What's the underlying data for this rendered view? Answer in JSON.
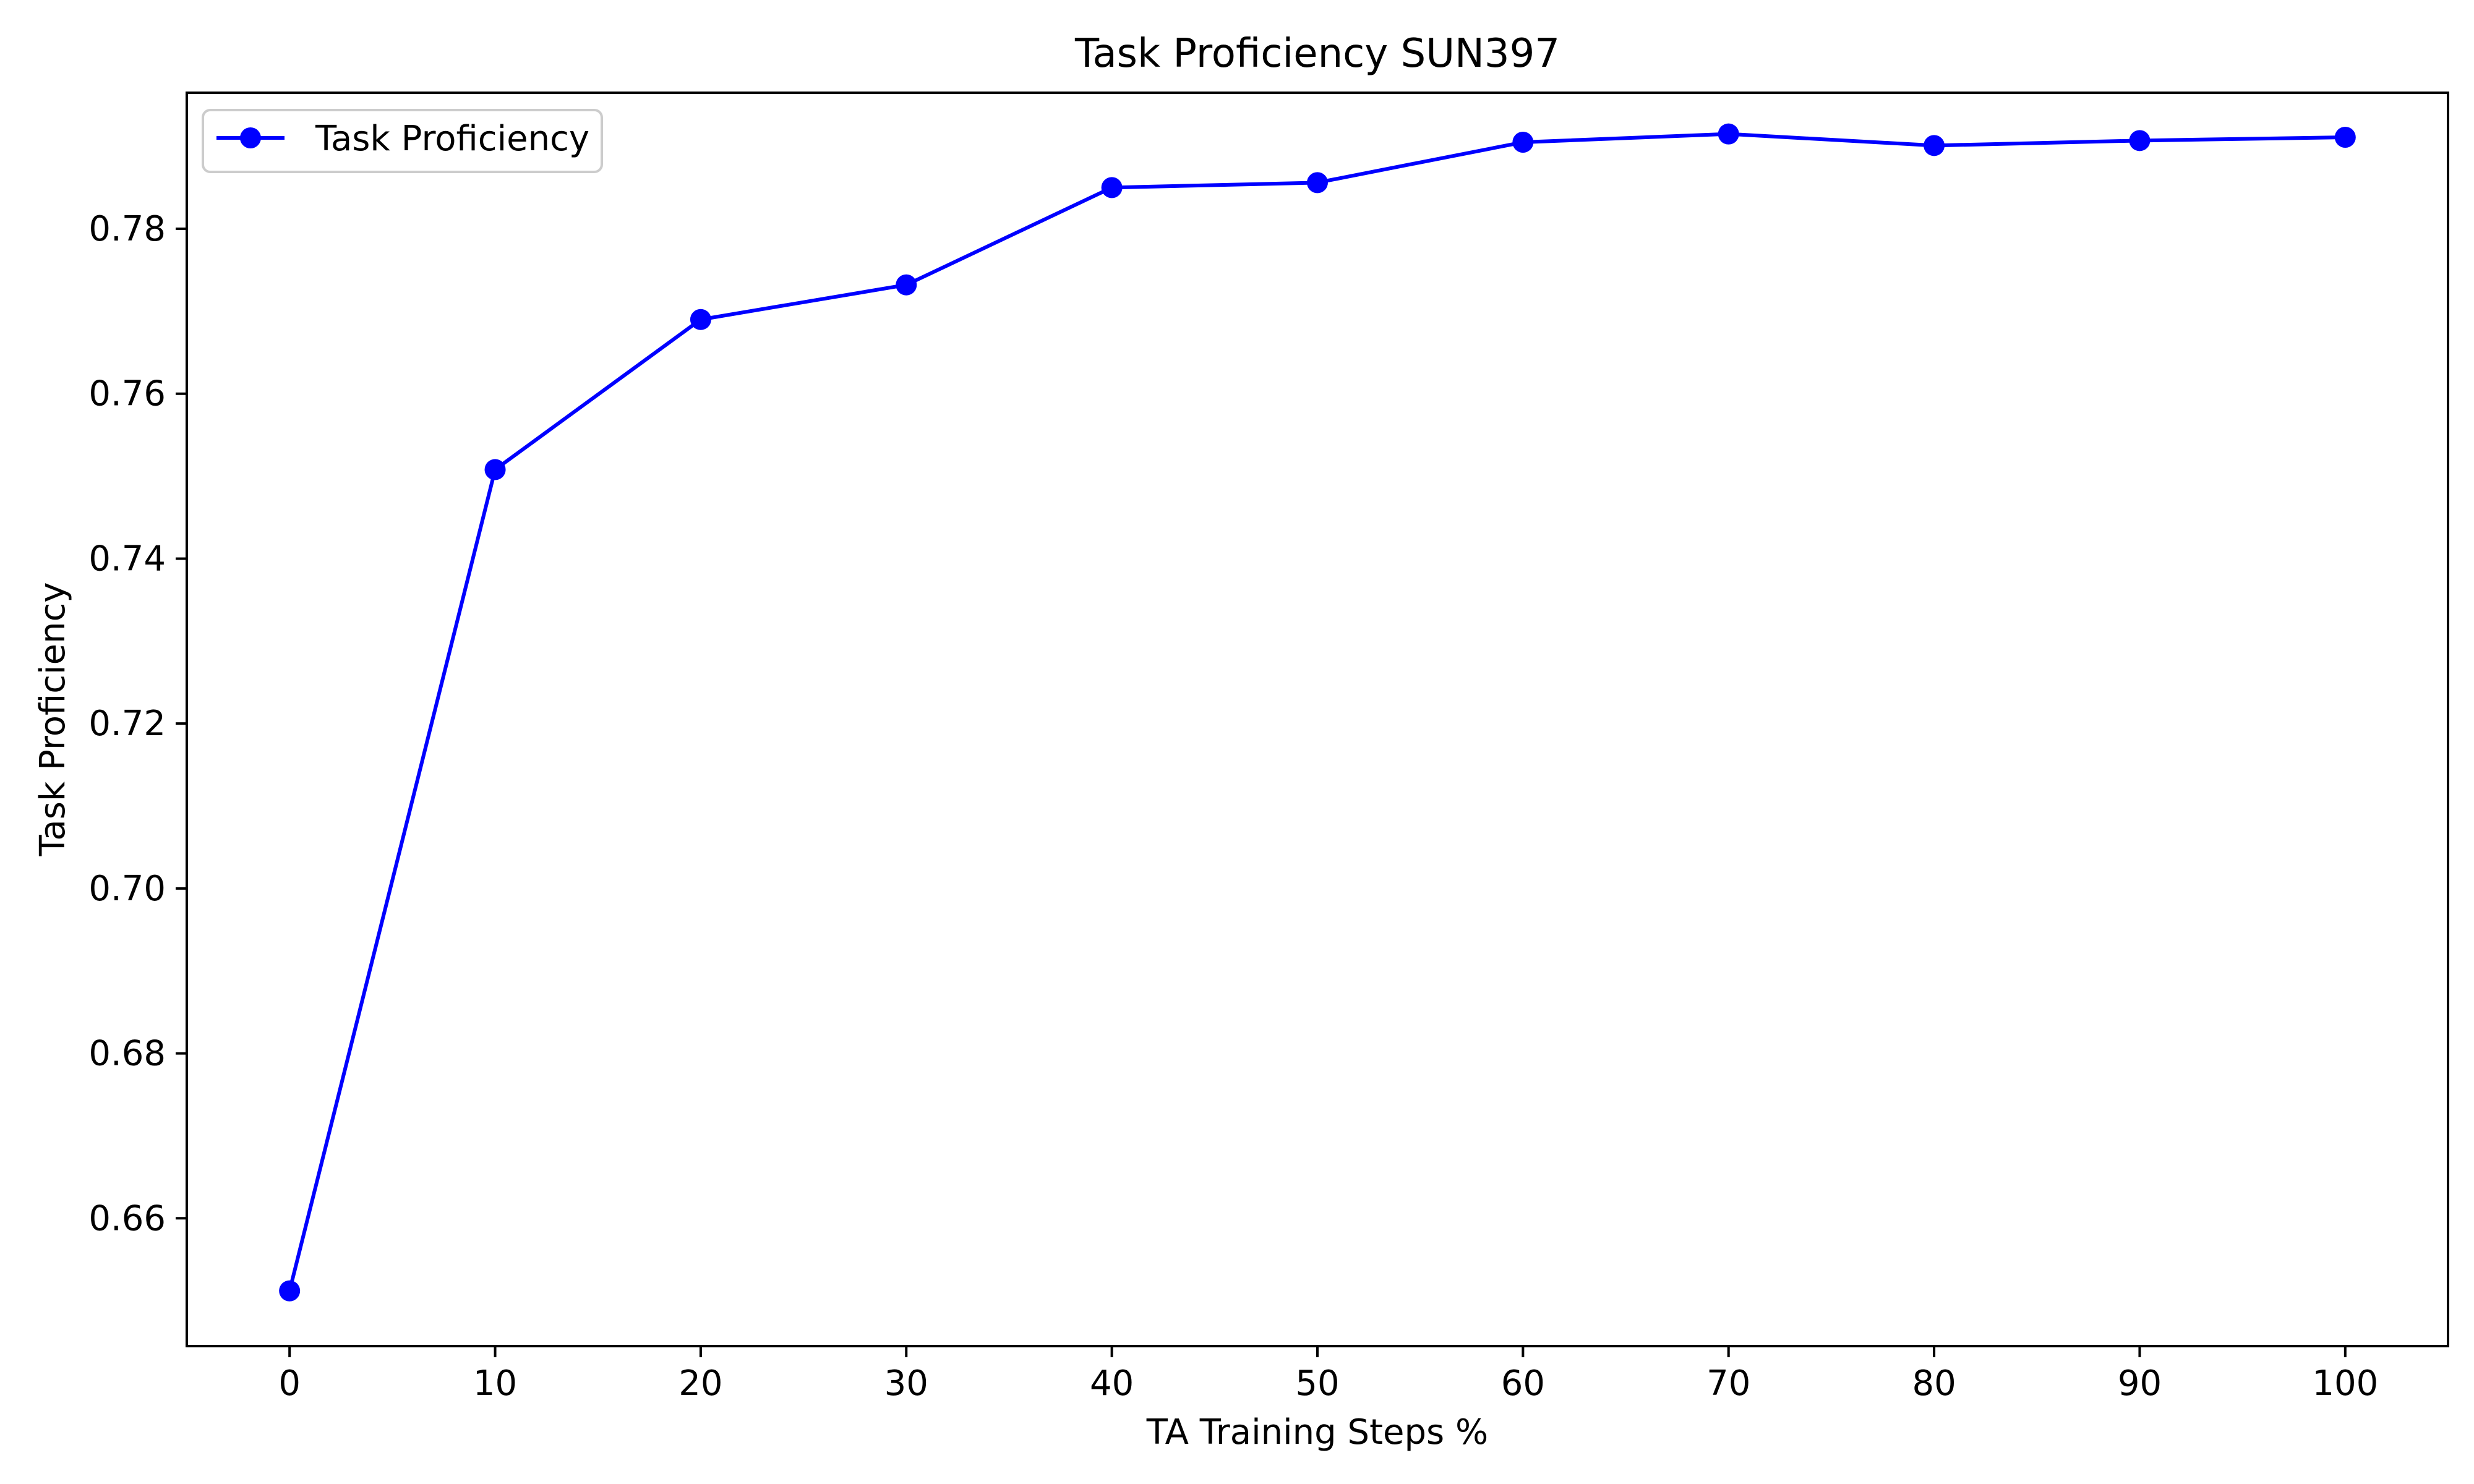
{
  "chart_data": {
    "type": "line",
    "title": "Task Proficiency SUN397",
    "xlabel": "TA Training Steps %",
    "ylabel": "Task Proficiency",
    "xlim": [
      -5,
      105
    ],
    "ylim": [
      0.6445,
      0.7965
    ],
    "x_ticks": [
      0,
      10,
      20,
      30,
      40,
      50,
      60,
      70,
      80,
      90,
      100
    ],
    "x_tick_labels": [
      "0",
      "10",
      "20",
      "30",
      "40",
      "50",
      "60",
      "70",
      "80",
      "90",
      "100"
    ],
    "y_ticks": [
      0.66,
      0.68,
      0.7,
      0.72,
      0.74,
      0.76,
      0.78
    ],
    "y_tick_labels": [
      "0.66",
      "0.68",
      "0.70",
      "0.72",
      "0.74",
      "0.76",
      "0.78"
    ],
    "grid": false,
    "legend_position": "top-left",
    "series": [
      {
        "name": "Task Proficiency",
        "color": "#0000ff",
        "marker": "circle",
        "x": [
          0,
          10,
          20,
          30,
          40,
          50,
          60,
          70,
          80,
          90,
          100
        ],
        "y": [
          0.6512,
          0.7508,
          0.769,
          0.7732,
          0.785,
          0.7856,
          0.7905,
          0.7915,
          0.7901,
          0.7907,
          0.7911
        ]
      }
    ]
  }
}
